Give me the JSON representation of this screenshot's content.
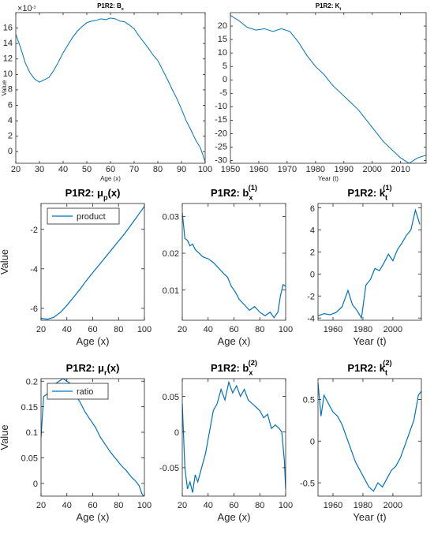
{
  "chart_data": [
    {
      "id": "bx-top",
      "type": "line",
      "title": "P1R2: B",
      "title_sub": "x",
      "xlabel": "Age (x)",
      "ylabel": "Value",
      "exponent_label": "×10",
      "exponent_power": "-3",
      "xlim": [
        20,
        100
      ],
      "ylim": [
        -1.5,
        18.0
      ],
      "xticks": [
        20,
        30,
        40,
        50,
        60,
        70,
        80,
        90,
        100
      ],
      "yticks": [
        0,
        2,
        4,
        6,
        8,
        10,
        12,
        14,
        16
      ],
      "color": "#0072BD",
      "x": [
        20,
        22,
        24,
        26,
        28,
        30,
        32,
        34,
        36,
        38,
        40,
        42,
        44,
        46,
        48,
        50,
        52,
        54,
        56,
        58,
        60,
        62,
        64,
        66,
        68,
        70,
        72,
        74,
        76,
        78,
        80,
        82,
        84,
        86,
        88,
        90,
        92,
        94,
        96,
        98,
        100
      ],
      "y": [
        15.2,
        13.5,
        11.5,
        10.2,
        9.4,
        9.0,
        9.3,
        9.6,
        10.5,
        11.6,
        12.8,
        13.8,
        14.8,
        15.6,
        16.2,
        16.7,
        16.9,
        17.0,
        17.2,
        17.1,
        17.3,
        17.2,
        16.9,
        16.8,
        16.4,
        15.9,
        15.0,
        14.2,
        13.4,
        12.5,
        11.8,
        10.6,
        9.4,
        8.1,
        6.9,
        5.5,
        4.0,
        2.8,
        1.5,
        0.5,
        -1.3
      ]
    },
    {
      "id": "kt-top",
      "type": "line",
      "title": "P1R2: K",
      "title_sub": "t",
      "xlabel": "Year (t)",
      "ylabel": "",
      "xlim": [
        1950,
        2019
      ],
      "ylim": [
        -31,
        25
      ],
      "xticks": [
        1950,
        1960,
        1970,
        1980,
        1990,
        2000,
        2010
      ],
      "yticks": [
        -30,
        -25,
        -20,
        -15,
        -10,
        -5,
        0,
        5,
        10,
        15,
        20
      ],
      "color": "#0072BD",
      "x": [
        1950,
        1953,
        1956,
        1959,
        1962,
        1965,
        1968,
        1971,
        1974,
        1977,
        1980,
        1983,
        1986,
        1989,
        1992,
        1995,
        1998,
        2001,
        2004,
        2007,
        2010,
        2013,
        2016,
        2019
      ],
      "y": [
        24,
        22,
        19.5,
        18.5,
        19,
        18,
        19,
        18,
        14,
        9,
        5,
        2,
        -2,
        -5,
        -8,
        -11,
        -15,
        -19,
        -23,
        -26,
        -29,
        -31,
        -29,
        -28
      ]
    },
    {
      "id": "mu-p",
      "type": "line",
      "title": "P1R2: μ",
      "title_sub": "p",
      "title_suffix": "(x)",
      "xlabel": "Age (x)",
      "ylabel": "Value",
      "legend": "product",
      "legend_position": "top-left",
      "xlim": [
        20,
        100
      ],
      "ylim": [
        -6.6,
        -0.7
      ],
      "xticks": [
        20,
        40,
        60,
        80,
        100
      ],
      "yticks": [
        -6,
        -4,
        -2
      ],
      "color": "#0072BD",
      "x": [
        20,
        25,
        30,
        35,
        40,
        45,
        50,
        55,
        60,
        65,
        70,
        75,
        80,
        85,
        90,
        95,
        100
      ],
      "y": [
        -6.5,
        -6.55,
        -6.45,
        -6.2,
        -5.85,
        -5.45,
        -5.05,
        -4.6,
        -4.2,
        -3.8,
        -3.4,
        -3.0,
        -2.6,
        -2.2,
        -1.75,
        -1.3,
        -0.85
      ]
    },
    {
      "id": "b1",
      "type": "line",
      "title": "P1R2: b",
      "title_sub": "x",
      "title_sup": "(1)",
      "xlabel": "Age (x)",
      "ylabel": "",
      "xlim": [
        20,
        100
      ],
      "ylim": [
        0.0018,
        0.0335
      ],
      "xticks": [
        20,
        40,
        60,
        80,
        100
      ],
      "yticks": [
        0.01,
        0.02,
        0.03
      ],
      "color": "#0072BD",
      "x": [
        20,
        22,
        24,
        26,
        28,
        30,
        33,
        36,
        40,
        44,
        48,
        52,
        55,
        58,
        61,
        64,
        68,
        72,
        76,
        80,
        84,
        88,
        91,
        94,
        96,
        98,
        100
      ],
      "y": [
        0.031,
        0.024,
        0.0235,
        0.022,
        0.0225,
        0.021,
        0.02,
        0.019,
        0.0185,
        0.0175,
        0.016,
        0.0145,
        0.0135,
        0.011,
        0.0095,
        0.0075,
        0.006,
        0.0045,
        0.0055,
        0.004,
        0.003,
        0.004,
        0.0025,
        0.004,
        0.0085,
        0.0115,
        0.011
      ]
    },
    {
      "id": "k1",
      "type": "line",
      "title": "P1R2: k",
      "title_sub": "t",
      "title_sup": "(1)",
      "xlabel": "Year (t)",
      "ylabel": "",
      "xlim": [
        1950,
        2019
      ],
      "ylim": [
        -4.2,
        6.4
      ],
      "xticks": [
        1960,
        1980,
        2000
      ],
      "yticks": [
        -4,
        -2,
        0,
        2,
        4,
        6
      ],
      "color": "#0072BD",
      "x": [
        1950,
        1954,
        1958,
        1962,
        1966,
        1970,
        1973,
        1976,
        1979,
        1982,
        1985,
        1988,
        1991,
        1994,
        1997,
        2000,
        2003,
        2006,
        2009,
        2012,
        2015,
        2018
      ],
      "y": [
        -3.8,
        -3.6,
        -3.7,
        -3.5,
        -3.0,
        -1.5,
        -2.8,
        -3.3,
        -4.0,
        -1.0,
        -0.5,
        0.5,
        0.3,
        1.0,
        1.8,
        1.2,
        2.2,
        2.8,
        3.5,
        4.0,
        5.8,
        4.5
      ]
    },
    {
      "id": "mu-r",
      "type": "line",
      "title": "P1R2: μ",
      "title_sub": "r",
      "title_suffix": "(x)",
      "xlabel": "Age (x)",
      "ylabel": "Value",
      "legend": "ratio",
      "legend_position": "top-left",
      "xlim": [
        20,
        100
      ],
      "ylim": [
        -0.025,
        0.205
      ],
      "xticks": [
        20,
        40,
        60,
        80,
        100
      ],
      "yticks": [
        0,
        0.05,
        0.1,
        0.15,
        0.2
      ],
      "color": "#0072BD",
      "x": [
        20,
        22,
        25,
        28,
        31,
        34,
        37,
        40,
        43,
        46,
        50,
        54,
        58,
        62,
        66,
        70,
        74,
        78,
        82,
        86,
        90,
        93,
        96,
        98,
        100
      ],
      "y": [
        0.09,
        0.17,
        0.175,
        0.19,
        0.195,
        0.2,
        0.205,
        0.2,
        0.195,
        0.175,
        0.16,
        0.14,
        0.125,
        0.11,
        0.09,
        0.075,
        0.06,
        0.048,
        0.035,
        0.025,
        0.012,
        0.005,
        -0.005,
        -0.02,
        -0.028
      ]
    },
    {
      "id": "b2",
      "type": "line",
      "title": "P1R2: b",
      "title_sub": "x",
      "title_sup": "(2)",
      "xlabel": "Age (x)",
      "ylabel": "",
      "xlim": [
        20,
        100
      ],
      "ylim": [
        -0.09,
        0.075
      ],
      "xticks": [
        20,
        40,
        60,
        80,
        100
      ],
      "yticks": [
        -0.05,
        0,
        0.05
      ],
      "color": "#0072BD",
      "x": [
        20,
        22,
        24,
        26,
        28,
        30,
        32,
        35,
        38,
        41,
        44,
        47,
        50,
        53,
        56,
        59,
        62,
        65,
        68,
        71,
        74,
        77,
        80,
        83,
        86,
        89,
        92,
        95,
        97,
        99,
        100
      ],
      "y": [
        0.04,
        -0.05,
        -0.08,
        -0.07,
        -0.085,
        -0.06,
        -0.07,
        -0.05,
        -0.03,
        0.0,
        0.03,
        0.04,
        0.06,
        0.045,
        0.07,
        0.055,
        0.065,
        0.05,
        0.06,
        0.045,
        0.04,
        0.035,
        0.03,
        0.02,
        0.025,
        0.005,
        0.01,
        0.005,
        0.0,
        -0.04,
        -0.08
      ]
    },
    {
      "id": "k2",
      "type": "line",
      "title": "P1R2: k",
      "title_sub": "t",
      "title_sup": "(2)",
      "xlabel": "Year (t)",
      "ylabel": "",
      "xlim": [
        1950,
        2019
      ],
      "ylim": [
        -0.66,
        0.75
      ],
      "xticks": [
        1960,
        1980,
        2000
      ],
      "yticks": [
        -0.5,
        0,
        0.5
      ],
      "color": "#0072BD",
      "x": [
        1950,
        1952,
        1954,
        1957,
        1960,
        1963,
        1966,
        1969,
        1972,
        1975,
        1978,
        1981,
        1984,
        1987,
        1990,
        1993,
        1996,
        1999,
        2002,
        2005,
        2008,
        2011,
        2014,
        2017,
        2019
      ],
      "y": [
        0.7,
        0.3,
        0.55,
        0.45,
        0.35,
        0.3,
        0.2,
        0.05,
        -0.1,
        -0.25,
        -0.35,
        -0.45,
        -0.55,
        -0.6,
        -0.5,
        -0.55,
        -0.45,
        -0.35,
        -0.3,
        -0.2,
        -0.05,
        0.1,
        0.25,
        0.55,
        0.6
      ]
    }
  ]
}
